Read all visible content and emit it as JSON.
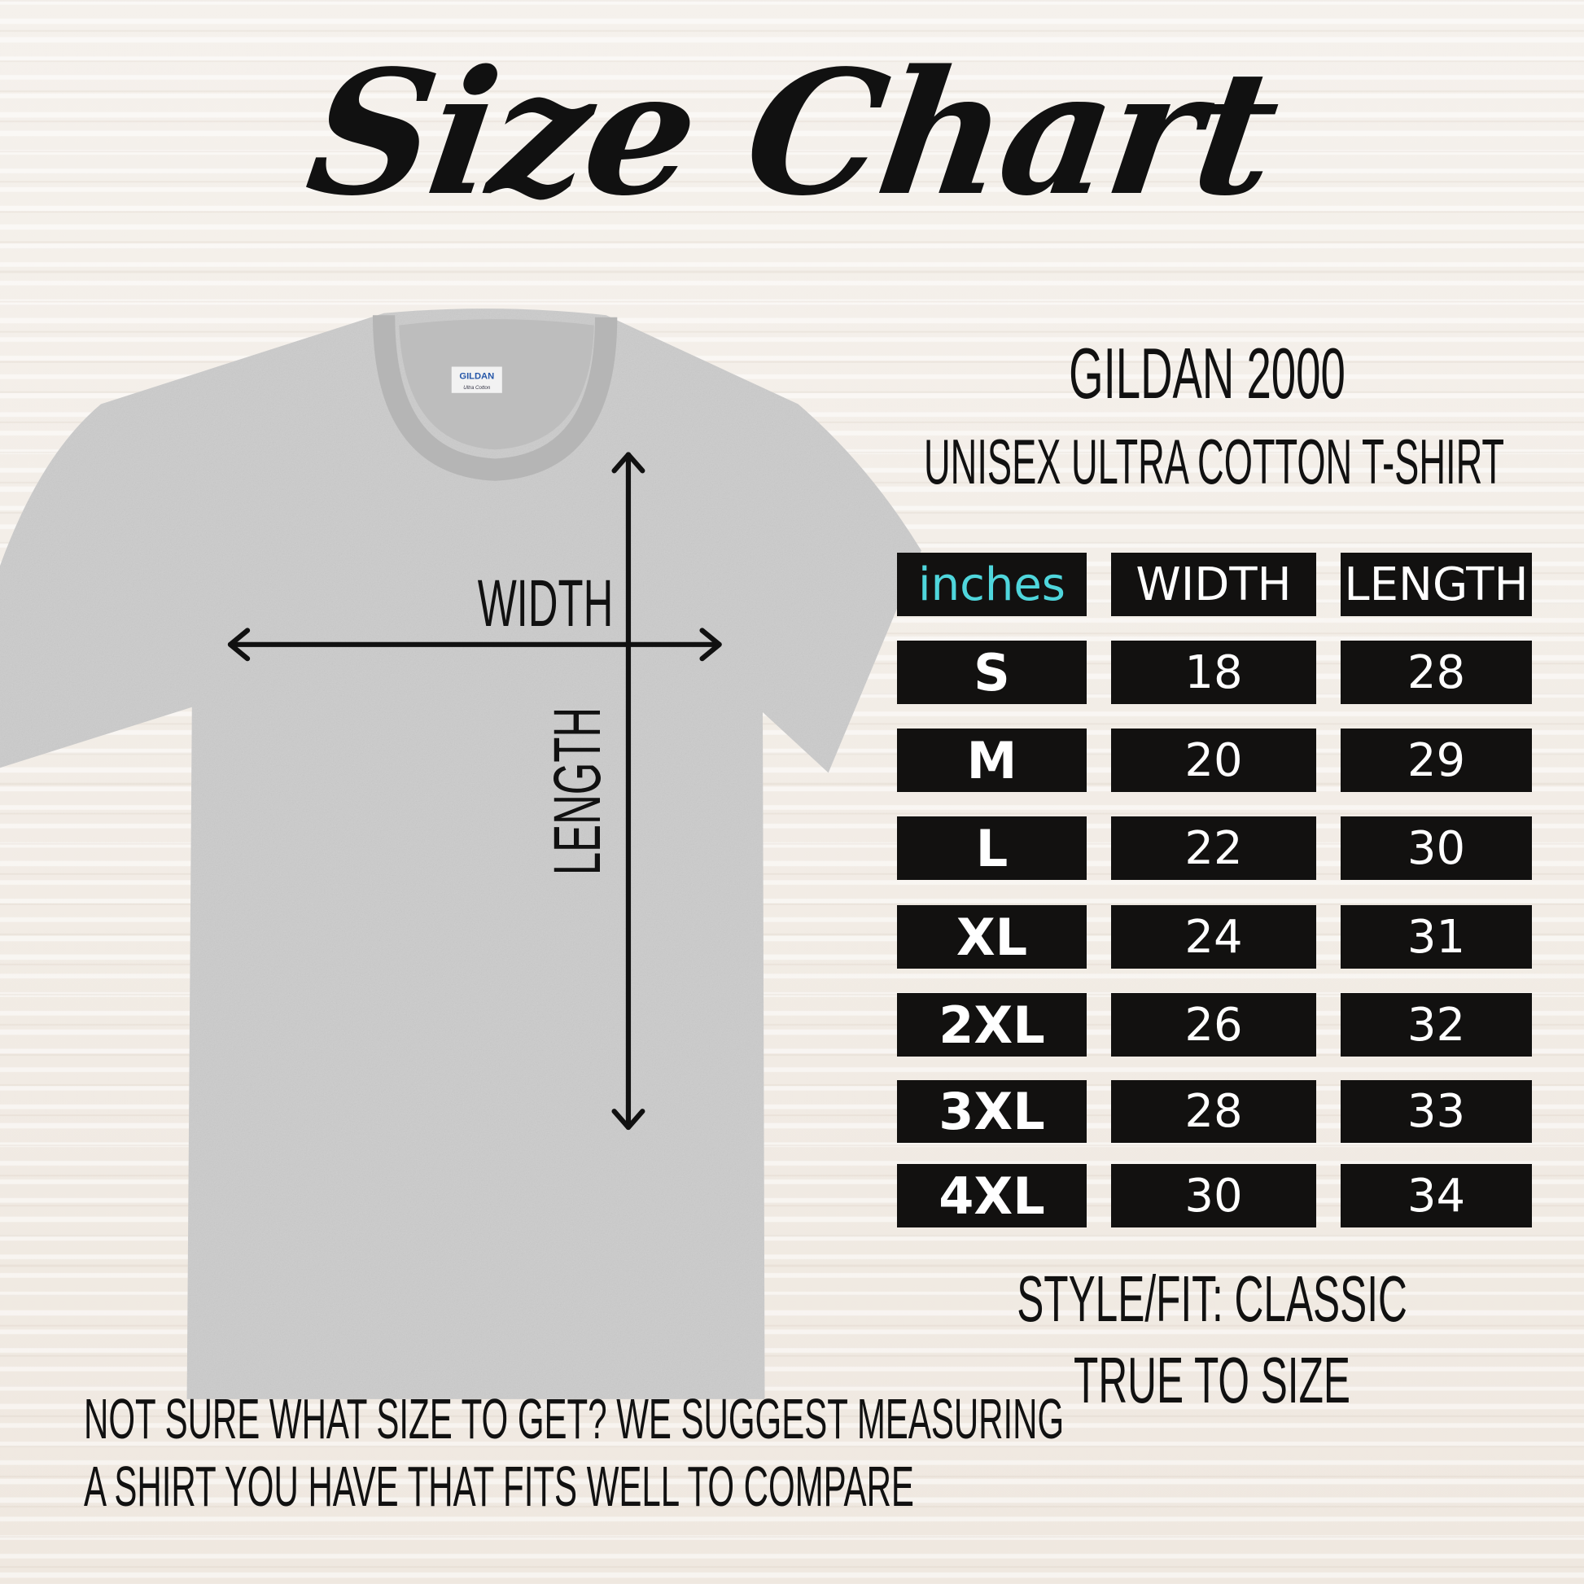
{
  "title": "Size Chart",
  "product": {
    "name": "GILDAN 2000",
    "subtitle": "UNISEX ULTRA COTTON T-SHIRT",
    "label_brand": "GILDAN",
    "label_line": "Ultra Cotton"
  },
  "diagram": {
    "width_label": "WIDTH",
    "length_label": "LENGTH"
  },
  "table": {
    "unit_header": "inches",
    "unit_color": "#4fd6dc",
    "headers": [
      "WIDTH",
      "LENGTH"
    ],
    "rows": [
      {
        "size": "S",
        "width": "18",
        "length": "28"
      },
      {
        "size": "M",
        "width": "20",
        "length": "29"
      },
      {
        "size": "L",
        "width": "22",
        "length": "30"
      },
      {
        "size": "XL",
        "width": "24",
        "length": "31"
      },
      {
        "size": "2XL",
        "width": "26",
        "length": "32"
      },
      {
        "size": "3XL",
        "width": "28",
        "length": "33"
      },
      {
        "size": "4XL",
        "width": "30",
        "length": "34"
      }
    ]
  },
  "fit": {
    "style": "STYLE/FIT: CLASSIC",
    "note": "TRUE TO SIZE"
  },
  "footer": {
    "line1": "NOT SURE WHAT SIZE TO GET? WE SUGGEST MEASURING",
    "line2": "A SHIRT YOU HAVE THAT FITS WELL TO COMPARE"
  }
}
